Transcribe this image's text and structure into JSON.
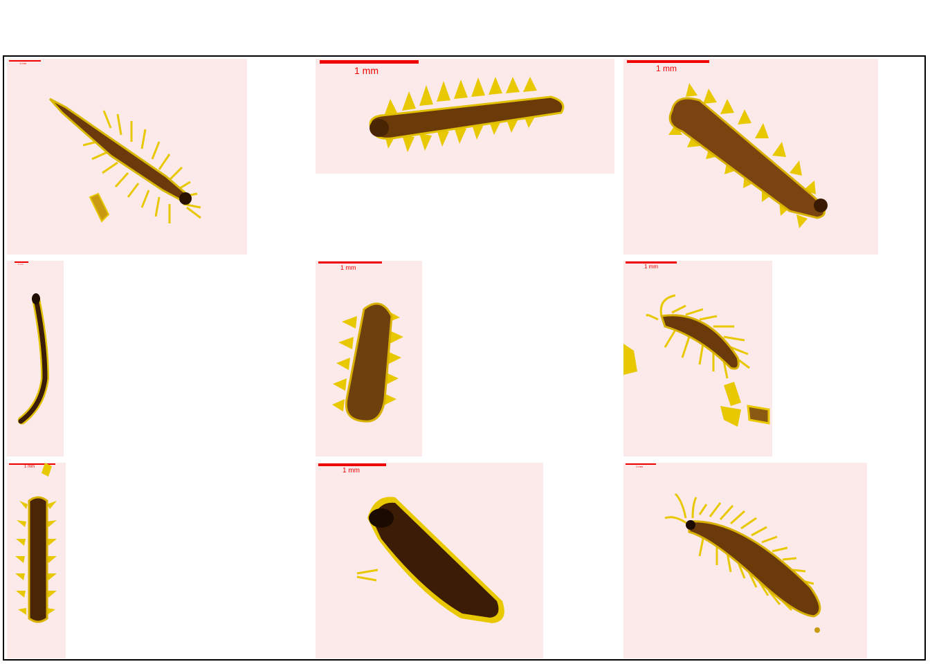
{
  "scale_label": "1 mm",
  "colors": {
    "background": "#fceaea",
    "scale": "#e00000",
    "body": "#5a3008",
    "setae": "#e8c800"
  },
  "panels": [
    {
      "id": "p1",
      "subject": "polychaete-larva"
    },
    {
      "id": "p2",
      "subject": "polychaete-larva"
    },
    {
      "id": "p3",
      "subject": "polychaete-larva"
    },
    {
      "id": "p4",
      "subject": "polychaete-larva"
    },
    {
      "id": "p5",
      "subject": "polychaete-larva"
    },
    {
      "id": "p6",
      "subject": "polychaete-larva"
    },
    {
      "id": "p7",
      "subject": "polychaete-larva"
    },
    {
      "id": "p8",
      "subject": "polychaete-larva"
    },
    {
      "id": "p9",
      "subject": "polychaete-larva"
    }
  ]
}
